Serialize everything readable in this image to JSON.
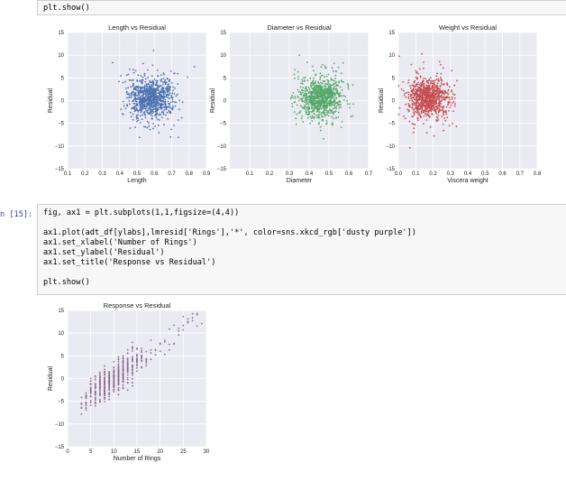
{
  "cell_top": {
    "code": "plt.show()"
  },
  "cell_15": {
    "prompt": "n [15]:",
    "lines": [
      "fig, ax1 = plt.subplots(1,1,figsize=(4,4))",
      "",
      "ax1.plot(adt_df[ylabs],lmresid['Rings'],'*', color=sns.xkcd_rgb['dusty purple'])",
      "ax1.set_xlabel('Number of Rings')",
      "ax1.set_ylabel('Residual')",
      "ax1.set_title('Response vs Residual')",
      "",
      "plt.show()"
    ]
  },
  "chart_data": [
    {
      "type": "scatter",
      "title": "Length vs Residual",
      "xlabel": "Length",
      "ylabel": "Residual",
      "xlim": [
        0.1,
        0.9
      ],
      "ylim": [
        -15,
        15
      ],
      "xticks": [
        "0.1",
        "0.2",
        "0.3",
        "0.4",
        "0.5",
        "0.6",
        "0.7",
        "0.8",
        "0.9"
      ],
      "yticks": [
        "15",
        "10",
        "5",
        "0",
        "−5",
        "−10",
        "−15"
      ],
      "color": "#4c72b0",
      "marker": "*",
      "grid": true,
      "series": [
        {
          "cloud": {
            "x_center": 0.58,
            "x_spread": 0.12,
            "y_center": 0.5,
            "y_spread": 2.6,
            "n": 900
          }
        }
      ]
    },
    {
      "type": "scatter",
      "title": "Diameter vs Residual",
      "xlabel": "Diameter",
      "ylabel": "Residual",
      "xlim": [
        0.0,
        0.7
      ],
      "ylim": [
        -15,
        15
      ],
      "xticks": [
        "0.1",
        "0.2",
        "0.3",
        "0.4",
        "0.5",
        "0.6",
        "0.7"
      ],
      "yticks": [
        "15",
        "10",
        "5",
        "0",
        "−5",
        "−10",
        "−15"
      ],
      "color": "#55a868",
      "marker": "*",
      "grid": true,
      "series": [
        {
          "cloud": {
            "x_center": 0.46,
            "x_spread": 0.1,
            "y_center": 0.5,
            "y_spread": 2.6,
            "n": 900
          }
        }
      ]
    },
    {
      "type": "scatter",
      "title": "Weight vs Residual",
      "xlabel": "Viscera weight",
      "ylabel": "Residual",
      "xlim": [
        0.0,
        0.8
      ],
      "ylim": [
        -15,
        15
      ],
      "xticks": [
        "0.0",
        "0.1",
        "0.2",
        "0.3",
        "0.4",
        "0.5",
        "0.6",
        "0.7",
        "0.8"
      ],
      "yticks": [
        "15",
        "10",
        "5",
        "0",
        "−5",
        "−10",
        "−15"
      ],
      "color": "#c44e52",
      "marker": "*",
      "grid": true,
      "series": [
        {
          "cloud": {
            "x_center": 0.17,
            "x_spread": 0.11,
            "y_center": 0.5,
            "y_spread": 2.6,
            "n": 900
          }
        }
      ]
    },
    {
      "type": "scatter",
      "title": "Response vs Residual",
      "xlabel": "Number of Rings",
      "ylabel": "Residual",
      "xlim": [
        0,
        30
      ],
      "ylim": [
        -15,
        15
      ],
      "xticks": [
        "0",
        "5",
        "10",
        "15",
        "20",
        "25",
        "30"
      ],
      "yticks": [
        "15",
        "10",
        "5",
        "0",
        "−5",
        "−10",
        "−15"
      ],
      "color": "#8c6c8f",
      "marker": "*",
      "grid": true,
      "series": [
        {
          "rings": {
            "x_min": 3,
            "x_max": 29,
            "slope": 0.75,
            "intercept": -7.4,
            "spread": 1.6
          }
        }
      ]
    }
  ]
}
